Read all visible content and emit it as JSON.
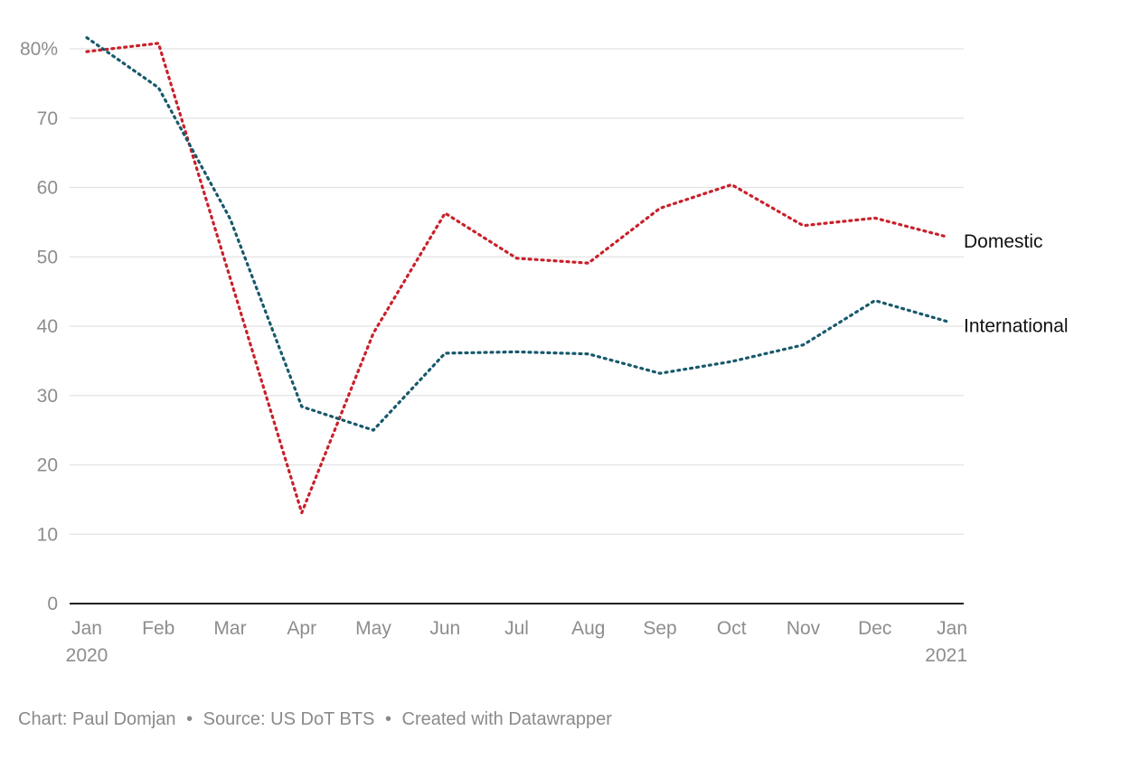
{
  "chart_data": {
    "type": "line",
    "title": "",
    "xlabel": "",
    "ylabel": "",
    "categories": [
      "Jan 2020",
      "Feb",
      "Mar",
      "Apr",
      "May",
      "Jun",
      "Jul",
      "Aug",
      "Sep",
      "Oct",
      "Nov",
      "Dec",
      "Jan 2021"
    ],
    "x_tick_labels": [
      {
        "top": "Jan",
        "bottom": "2020"
      },
      {
        "top": "Feb",
        "bottom": ""
      },
      {
        "top": "Mar",
        "bottom": ""
      },
      {
        "top": "Apr",
        "bottom": ""
      },
      {
        "top": "May",
        "bottom": ""
      },
      {
        "top": "Jun",
        "bottom": ""
      },
      {
        "top": "Jul",
        "bottom": ""
      },
      {
        "top": "Aug",
        "bottom": ""
      },
      {
        "top": "Sep",
        "bottom": ""
      },
      {
        "top": "Oct",
        "bottom": ""
      },
      {
        "top": "Nov",
        "bottom": ""
      },
      {
        "top": "Dec",
        "bottom": ""
      },
      {
        "top": "Jan",
        "bottom": "2021"
      }
    ],
    "y_ticks": [
      0,
      10,
      20,
      30,
      40,
      50,
      60,
      70,
      80
    ],
    "y_tick_labels": [
      "0",
      "10",
      "20",
      "30",
      "40",
      "50",
      "60",
      "70",
      "80%"
    ],
    "ylim": [
      0,
      80
    ],
    "grid": true,
    "line_style": "dotted",
    "series": [
      {
        "name": "Domestic",
        "color": "#c9202a",
        "values": [
          79.6,
          80.8,
          47.0,
          13.1,
          39.0,
          56.3,
          49.8,
          49.1,
          57.0,
          60.4,
          54.5,
          55.6,
          52.9
        ]
      },
      {
        "name": "International",
        "color": "#17596b",
        "values": [
          81.6,
          74.4,
          55.5,
          28.4,
          25.0,
          36.1,
          36.3,
          36.0,
          33.2,
          34.9,
          37.3,
          43.7,
          40.7
        ]
      }
    ]
  },
  "footer": {
    "chart_by": "Chart: Paul Domjan",
    "source": "Source: US DoT BTS",
    "created": "Created with Datawrapper",
    "separator": "•"
  }
}
